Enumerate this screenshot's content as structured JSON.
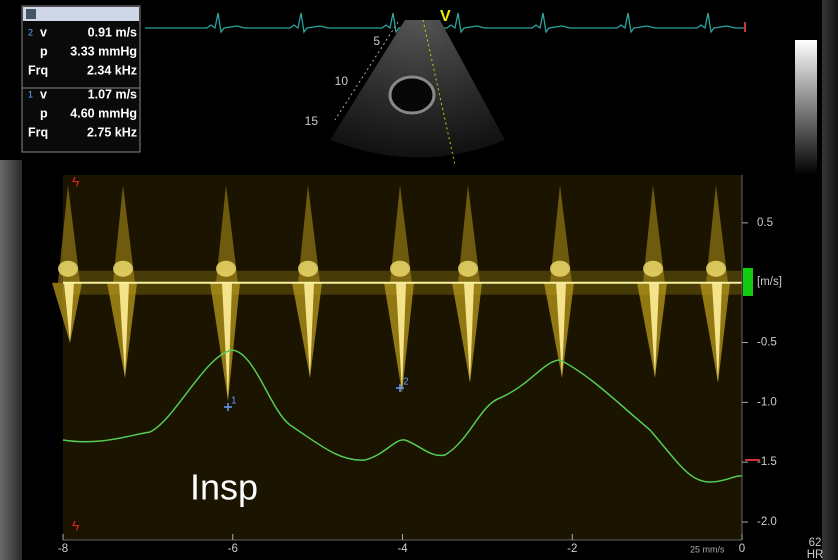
{
  "measurements": [
    {
      "index": "2",
      "rows": [
        [
          "v",
          "0.91 m/s"
        ],
        [
          "p",
          "3.33 mmHg"
        ],
        [
          "Frq",
          "2.34 kHz"
        ]
      ]
    },
    {
      "index": "1",
      "rows": [
        [
          "v",
          "1.07 m/s"
        ],
        [
          "p",
          "4.60 mmHg"
        ],
        [
          "Frq",
          "2.75 kHz"
        ]
      ]
    }
  ],
  "echo": {
    "marker": "V",
    "depths": [
      5,
      10,
      15
    ]
  },
  "doppler": {
    "unit": "[m/s]",
    "ylim": [
      -2.15,
      0.9
    ],
    "yticks": [
      0.5,
      -0.5,
      {
        "value": -1,
        "label": "-1.0"
      },
      -1.5,
      {
        "value": -2,
        "label": "-2.0"
      }
    ],
    "xlim": [
      -8,
      0
    ],
    "xticks": [
      -8,
      -6,
      -4,
      -2,
      0
    ],
    "annotation": "Insp",
    "cursors": [
      "1",
      "2"
    ],
    "sweep": "25 mm/s",
    "hr": "62",
    "hr_label": "HR"
  }
}
